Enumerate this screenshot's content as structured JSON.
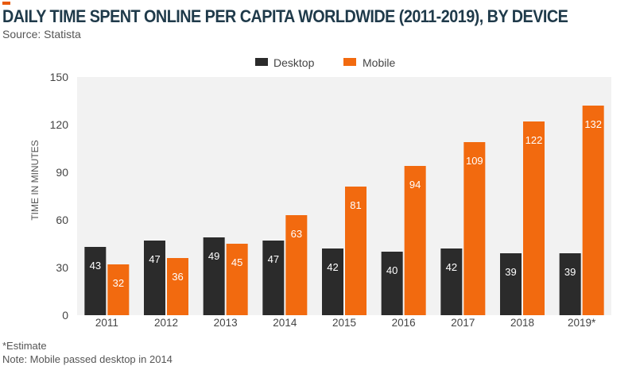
{
  "header": {
    "title": "DAILY TIME SPENT ONLINE PER CAPITA WORLDWIDE (2011-2019), BY DEVICE",
    "source": "Source: Statista"
  },
  "footnotes": {
    "estimate": "*Estimate",
    "note": "Note: Mobile passed desktop in 2014"
  },
  "colors": {
    "desktop": "#2b2b2b",
    "mobile": "#f26a0f",
    "plot_bg": "#f2f2f2",
    "accent": "#e85a0c"
  },
  "chart_data": {
    "type": "bar",
    "title": "DAILY TIME SPENT ONLINE PER CAPITA WORLDWIDE (2011-2019), BY DEVICE",
    "xlabel": "",
    "ylabel": "TIME IN MINUTES",
    "ylim": [
      0,
      150
    ],
    "yticks": [
      0,
      30,
      60,
      90,
      120,
      150
    ],
    "grid": false,
    "legend": "top-center",
    "categories": [
      "2011",
      "2012",
      "2013",
      "2014",
      "2015",
      "2016",
      "2017",
      "2018",
      "2019*"
    ],
    "series": [
      {
        "name": "Desktop",
        "values": [
          43,
          47,
          49,
          47,
          42,
          40,
          42,
          39,
          39
        ]
      },
      {
        "name": "Mobile",
        "values": [
          32,
          36,
          45,
          63,
          81,
          94,
          109,
          122,
          132
        ]
      }
    ]
  }
}
